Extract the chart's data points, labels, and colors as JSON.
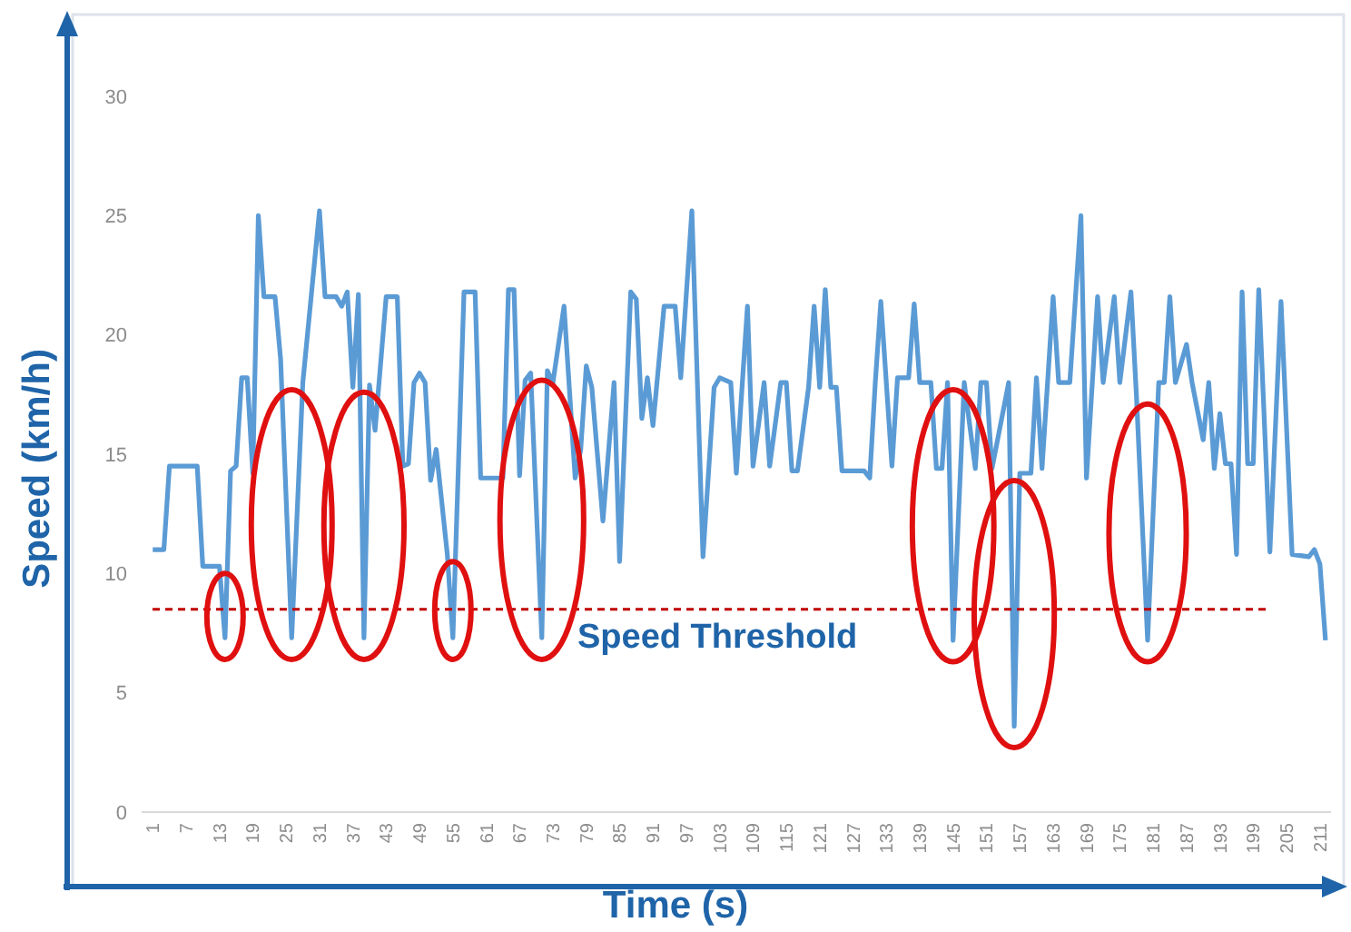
{
  "chart_data": {
    "type": "line",
    "xlabel": "Time (s)",
    "ylabel": "Speed (km/h)",
    "x": [
      1,
      3,
      4,
      9,
      10,
      13,
      14,
      15,
      16,
      17,
      18,
      19,
      20,
      21,
      23,
      24,
      26,
      28,
      31,
      32,
      34,
      35,
      36,
      37,
      38,
      39,
      40,
      41,
      43,
      45,
      46,
      47,
      48,
      49,
      50,
      51,
      52,
      54,
      55,
      57,
      59,
      60,
      64,
      65,
      66,
      67,
      68,
      69,
      71,
      72,
      73,
      75,
      77,
      78,
      79,
      80,
      82,
      84,
      85,
      87,
      88,
      89,
      90,
      91,
      93,
      95,
      96,
      98,
      100,
      102,
      103,
      105,
      106,
      108,
      109,
      111,
      112,
      114,
      115,
      116,
      117,
      119,
      120,
      121,
      122,
      123,
      124,
      125,
      129,
      130,
      131,
      132,
      134,
      135,
      137,
      138,
      139,
      141,
      142,
      143,
      144,
      145,
      147,
      149,
      150,
      151,
      152,
      155,
      156,
      157,
      159,
      160,
      161,
      163,
      164,
      166,
      168,
      169,
      171,
      172,
      174,
      175,
      177,
      178,
      180,
      182,
      183,
      184,
      185,
      187,
      188,
      190,
      191,
      192,
      193,
      194,
      195,
      196,
      197,
      198,
      199,
      200,
      202,
      204,
      206,
      209,
      210,
      211,
      212
    ],
    "series": [
      {
        "color": "#5b9bd5",
        "values": [
          11,
          11,
          14.5,
          14.5,
          10.3,
          10.3,
          7.3,
          14.3,
          14.5,
          18.2,
          18.2,
          14.2,
          25,
          21.6,
          21.6,
          19,
          7.3,
          18,
          25.2,
          21.6,
          21.6,
          21.2,
          21.8,
          17.8,
          21.7,
          7.3,
          17.9,
          16,
          21.6,
          21.6,
          14.5,
          14.6,
          18,
          18.4,
          18,
          13.9,
          15.2,
          10.8,
          7.3,
          21.8,
          21.8,
          14,
          14,
          21.9,
          21.9,
          14.1,
          18.1,
          18.4,
          7.3,
          18.5,
          18,
          21.2,
          14,
          15.2,
          18.7,
          17.8,
          12.2,
          18,
          10.5,
          21.8,
          21.5,
          16.5,
          18.2,
          16.2,
          21.2,
          21.2,
          18.2,
          25.2,
          10.7,
          17.8,
          18.2,
          18,
          14.2,
          21.2,
          14.5,
          18,
          14.5,
          18,
          18,
          14.3,
          14.3,
          17.8,
          21.2,
          17.8,
          21.9,
          17.8,
          17.8,
          14.3,
          14.3,
          14,
          18,
          21.4,
          14.5,
          18.2,
          18.2,
          21.3,
          18,
          18,
          14.4,
          14.4,
          18,
          7.2,
          18,
          14.4,
          18,
          18,
          14.4,
          18,
          3.6,
          14.2,
          14.2,
          18.2,
          14.4,
          21.6,
          18,
          18,
          25,
          14,
          21.6,
          18,
          21.6,
          18,
          21.8,
          17.4,
          7.2,
          18,
          18,
          21.6,
          18,
          19.6,
          18,
          15.6,
          18,
          14.4,
          16.7,
          14.6,
          14.6,
          10.8,
          21.8,
          14.6,
          14.6,
          21.9,
          10.9,
          21.4,
          10.8,
          10.7,
          11,
          10.4,
          7.2
        ]
      }
    ],
    "xlim": [
      -1,
      213
    ],
    "xticks": [
      1,
      7,
      13,
      19,
      25,
      31,
      37,
      43,
      49,
      55,
      61,
      67,
      73,
      79,
      85,
      91,
      97,
      103,
      109,
      115,
      121,
      127,
      133,
      139,
      145,
      151,
      157,
      163,
      169,
      175,
      181,
      187,
      193,
      199,
      205,
      211
    ],
    "ylim": [
      0,
      30
    ],
    "yticks": [
      0,
      5,
      10,
      15,
      20,
      25,
      30
    ],
    "grid": false,
    "marker": "none",
    "line_style": "solid",
    "ref_lines": [
      {
        "axis": "y",
        "value": 8.5,
        "label": "Speed Threshold",
        "color": "#c00000",
        "line_style": "dashed"
      }
    ]
  }
}
